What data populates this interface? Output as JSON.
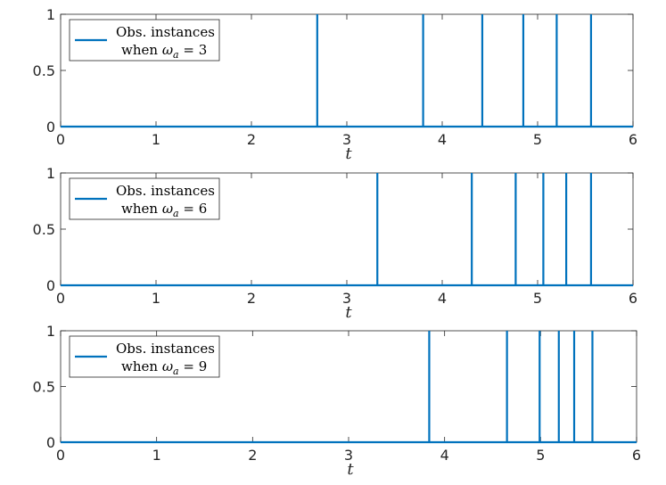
{
  "chart_data": [
    {
      "type": "line",
      "xlabel": "t",
      "ylabel": "",
      "xlim": [
        0,
        6
      ],
      "ylim": [
        0,
        1
      ],
      "xticks": [
        "0",
        "1",
        "2",
        "3",
        "4",
        "5",
        "6"
      ],
      "yticks": [
        "0",
        "0.5",
        "1"
      ],
      "legend": {
        "line1": "Obs. instances",
        "line2_prefix": "when ",
        "symbol": "ω",
        "subscript": "a",
        "line2_suffix": " = 3",
        "placement": "top-left"
      },
      "series": [
        {
          "name": "Obs. instances when ω_a = 3",
          "color": "#0072BD",
          "impulses": [
            2.69,
            3.8,
            4.42,
            4.85,
            5.2,
            5.56
          ]
        }
      ]
    },
    {
      "type": "line",
      "xlabel": "t",
      "ylabel": "",
      "xlim": [
        0,
        6
      ],
      "ylim": [
        0,
        1
      ],
      "xticks": [
        "0",
        "1",
        "2",
        "3",
        "4",
        "5",
        "6"
      ],
      "yticks": [
        "0",
        "0.5",
        "1"
      ],
      "legend": {
        "line1": "Obs. instances",
        "line2_prefix": "when ",
        "symbol": "ω",
        "subscript": "a",
        "line2_suffix": " = 6",
        "placement": "top-left"
      },
      "series": [
        {
          "name": "Obs. instances when ω_a = 6",
          "color": "#0072BD",
          "impulses": [
            3.32,
            4.31,
            4.77,
            5.06,
            5.3,
            5.56
          ]
        }
      ]
    },
    {
      "type": "line",
      "xlabel": "t",
      "ylabel": "",
      "xlim": [
        0,
        6
      ],
      "ylim": [
        0,
        1
      ],
      "xticks": [
        "0",
        "1",
        "2",
        "3",
        "4",
        "5",
        "6"
      ],
      "yticks": [
        "0",
        "0.5",
        "1"
      ],
      "legend": {
        "line1": "Obs. instances",
        "line2_prefix": "when ",
        "symbol": "ω",
        "subscript": "a",
        "line2_suffix": " = 9",
        "placement": "top-left"
      },
      "series": [
        {
          "name": "Obs. instances when ω_a = 9",
          "color": "#0072BD",
          "impulses": [
            3.84,
            4.65,
            4.99,
            5.19,
            5.35,
            5.54
          ]
        }
      ]
    }
  ]
}
